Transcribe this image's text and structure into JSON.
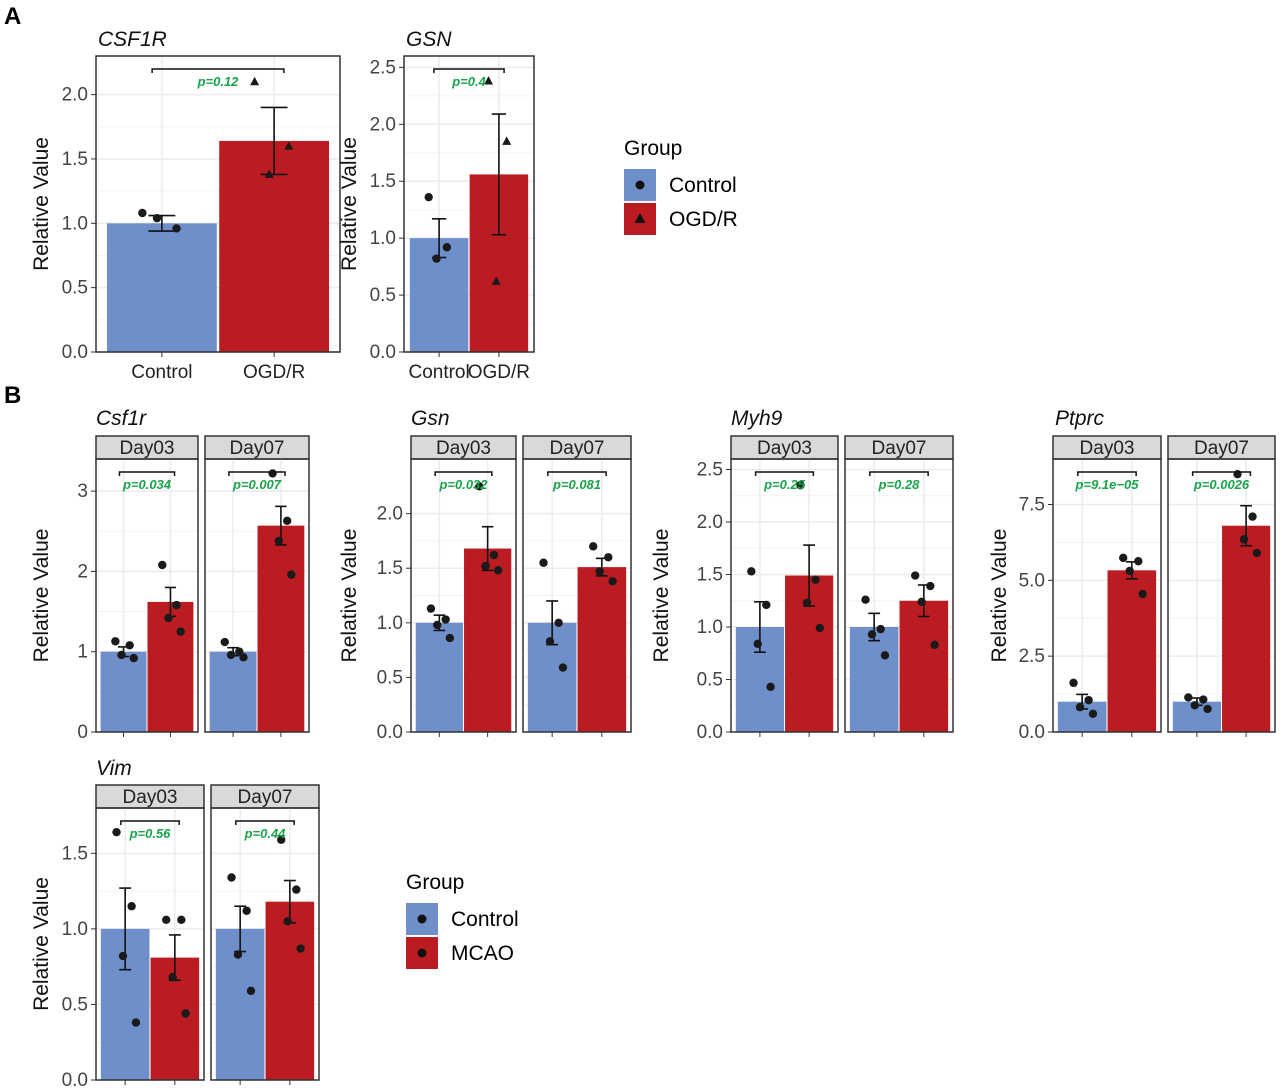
{
  "panel_labels": {
    "a": "A",
    "b": "B"
  },
  "colors": {
    "control": "#6e8fca",
    "treated": "#bb1c22",
    "pvalue": "#1aa34a",
    "strip": "#d9d9d9",
    "grid": "#ebebeb"
  },
  "legend_a": {
    "title": "Group",
    "items": [
      {
        "label": "Control",
        "color": "#6e8fca",
        "shape": "circle"
      },
      {
        "label": "OGD/R",
        "color": "#bb1c22",
        "shape": "triangle"
      }
    ]
  },
  "legend_b": {
    "title": "Group",
    "items": [
      {
        "label": "Control",
        "color": "#6e8fca",
        "shape": "circle"
      },
      {
        "label": "MCAO",
        "color": "#bb1c22",
        "shape": "circle"
      }
    ]
  },
  "chart_data": [
    {
      "id": "csf1r_a",
      "type": "bar",
      "title": "CSF1R",
      "ylabel": "Relative Value",
      "ylim": [
        0,
        2.3
      ],
      "yticks": [
        "0.0",
        "0.5",
        "1.0",
        "1.5",
        "2.0"
      ],
      "grid": true,
      "categories": [
        "Control",
        "OGD/R"
      ],
      "xtick_labels": [
        "Control",
        "OGD/R"
      ],
      "facets": [
        {
          "label": "",
          "pvalue": "p=0.12",
          "means": [
            1.0,
            1.64
          ],
          "errors": [
            0.06,
            0.26
          ],
          "points": [
            [
              1.08,
              0.96,
              1.04
            ],
            [
              2.1,
              1.6,
              1.38
            ]
          ]
        }
      ]
    },
    {
      "id": "gsn_a",
      "type": "bar",
      "title": "GSN",
      "ylabel": "Relative Value",
      "ylim": [
        0,
        2.6
      ],
      "yticks": [
        "0.0",
        "0.5",
        "1.0",
        "1.5",
        "2.0",
        "2.5"
      ],
      "grid": true,
      "categories": [
        "Control",
        "OGD/R"
      ],
      "xtick_labels": [
        "Control",
        "OGD/R"
      ],
      "facets": [
        {
          "label": "",
          "pvalue": "p=0.4",
          "means": [
            1.0,
            1.56
          ],
          "errors": [
            0.17,
            0.53
          ],
          "points": [
            [
              1.36,
              0.92,
              0.82
            ],
            [
              2.38,
              1.85,
              0.62
            ]
          ]
        }
      ]
    },
    {
      "id": "csf1r_b",
      "type": "bar",
      "title": "Csf1r",
      "ylabel": "Relative Value",
      "ylim": [
        0,
        3.4
      ],
      "yticks": [
        "0",
        "1",
        "2",
        "3"
      ],
      "grid": true,
      "categories": [
        "Control",
        "MCAO"
      ],
      "xtick_labels": [
        "",
        ""
      ],
      "facets": [
        {
          "label": "Day03",
          "pvalue": "p=0.034",
          "means": [
            1.0,
            1.62
          ],
          "errors": [
            0.06,
            0.18
          ],
          "points": [
            [
              1.13,
              1.08,
              0.96,
              0.92
            ],
            [
              2.08,
              1.58,
              1.42,
              1.25
            ]
          ]
        },
        {
          "label": "Day07",
          "pvalue": "p=0.007",
          "means": [
            1.0,
            2.57
          ],
          "errors": [
            0.05,
            0.24
          ],
          "points": [
            [
              1.12,
              1.0,
              0.96,
              0.93
            ],
            [
              3.22,
              2.63,
              2.38,
              1.96
            ]
          ]
        }
      ]
    },
    {
      "id": "gsn_b",
      "type": "bar",
      "title": "Gsn",
      "ylabel": "Relative Value",
      "ylim": [
        0,
        2.5
      ],
      "yticks": [
        "0.0",
        "0.5",
        "1.0",
        "1.5",
        "2.0"
      ],
      "grid": true,
      "categories": [
        "Control",
        "MCAO"
      ],
      "xtick_labels": [
        "",
        ""
      ],
      "facets": [
        {
          "label": "Day03",
          "pvalue": "p=0.032",
          "means": [
            1.0,
            1.68
          ],
          "errors": [
            0.07,
            0.2
          ],
          "points": [
            [
              1.13,
              1.03,
              0.98,
              0.86
            ],
            [
              2.25,
              1.62,
              1.52,
              1.48
            ]
          ]
        },
        {
          "label": "Day07",
          "pvalue": "p=0.081",
          "means": [
            1.0,
            1.51
          ],
          "errors": [
            0.2,
            0.08
          ],
          "points": [
            [
              1.55,
              1.0,
              0.83,
              0.59
            ],
            [
              1.7,
              1.6,
              1.47,
              1.38
            ]
          ]
        }
      ]
    },
    {
      "id": "myh9_b",
      "type": "bar",
      "title": "Myh9",
      "ylabel": "Relative Value",
      "ylim": [
        0,
        2.6
      ],
      "yticks": [
        "0.0",
        "0.5",
        "1.0",
        "1.5",
        "2.0",
        "2.5"
      ],
      "grid": true,
      "categories": [
        "Control",
        "MCAO"
      ],
      "xtick_labels": [
        "",
        ""
      ],
      "facets": [
        {
          "label": "Day03",
          "pvalue": "p=0.25",
          "means": [
            1.0,
            1.49
          ],
          "errors": [
            0.24,
            0.29
          ],
          "points": [
            [
              1.53,
              1.21,
              0.84,
              0.43
            ],
            [
              2.35,
              1.45,
              1.23,
              0.99
            ]
          ]
        },
        {
          "label": "Day07",
          "pvalue": "p=0.28",
          "means": [
            1.0,
            1.25
          ],
          "errors": [
            0.13,
            0.15
          ],
          "points": [
            [
              1.26,
              0.98,
              0.93,
              0.73
            ],
            [
              1.49,
              1.39,
              1.24,
              0.83
            ]
          ]
        }
      ]
    },
    {
      "id": "ptprc_b",
      "type": "bar",
      "title": "Ptprc",
      "ylabel": "Relative Value",
      "ylim": [
        0,
        9
      ],
      "yticks": [
        "0.0",
        "2.5",
        "5.0",
        "7.5"
      ],
      "grid": true,
      "categories": [
        "Control",
        "MCAO"
      ],
      "xtick_labels": [
        "",
        ""
      ],
      "facets": [
        {
          "label": "Day03",
          "pvalue": "p=9.1e−05",
          "means": [
            1.0,
            5.33
          ],
          "errors": [
            0.24,
            0.28
          ],
          "points": [
            [
              1.62,
              1.05,
              0.82,
              0.6
            ],
            [
              5.74,
              5.63,
              5.31,
              4.55
            ]
          ]
        },
        {
          "label": "Day07",
          "pvalue": "p=0.0026",
          "means": [
            1.0,
            6.8
          ],
          "errors": [
            0.12,
            0.66
          ],
          "points": [
            [
              1.14,
              1.07,
              0.88,
              0.76
            ],
            [
              8.5,
              7.1,
              6.35,
              5.9
            ]
          ]
        }
      ]
    },
    {
      "id": "vim_b",
      "type": "bar",
      "title": "Vim",
      "ylabel": "Relative Value",
      "ylim": [
        0,
        1.8
      ],
      "yticks": [
        "0.0",
        "0.5",
        "1.0",
        "1.5"
      ],
      "grid": true,
      "categories": [
        "Control",
        "MCAO"
      ],
      "xtick_labels": [
        "",
        ""
      ],
      "facets": [
        {
          "label": "Day03",
          "pvalue": "p=0.56",
          "means": [
            1.0,
            0.81
          ],
          "errors": [
            0.27,
            0.15
          ],
          "points": [
            [
              1.64,
              1.15,
              0.82,
              0.38
            ],
            [
              1.06,
              1.06,
              0.68,
              0.44
            ]
          ]
        },
        {
          "label": "Day07",
          "pvalue": "p=0.44",
          "means": [
            1.0,
            1.18
          ],
          "errors": [
            0.15,
            0.14
          ],
          "points": [
            [
              1.34,
              1.12,
              0.83,
              0.59
            ],
            [
              1.59,
              1.26,
              1.05,
              0.87
            ]
          ]
        }
      ]
    }
  ]
}
